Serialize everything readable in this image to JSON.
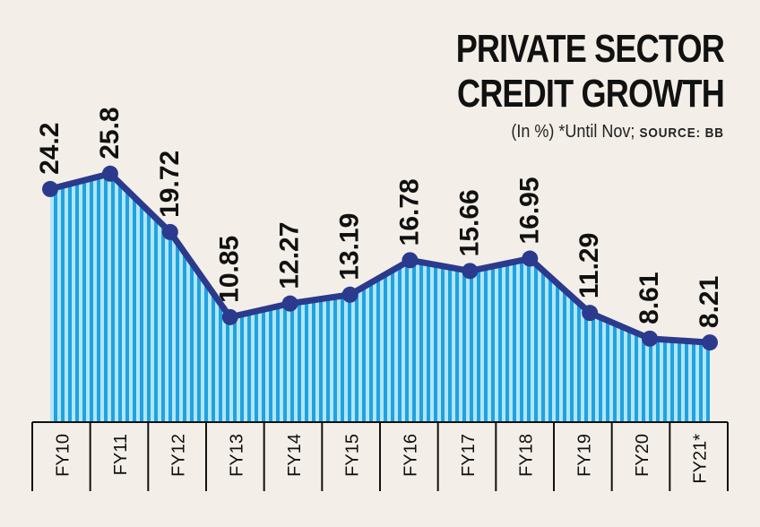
{
  "chart_data": {
    "type": "area",
    "title_line1": "PRIVATE SECTOR",
    "title_line2": "CREDIT GROWTH",
    "subtitle": "(In %) *Until Nov;",
    "source": "SOURCE: BB",
    "categories": [
      "FY10",
      "FY11",
      "FY12",
      "FY13",
      "FY14",
      "FY15",
      "FY16",
      "FY17",
      "FY18",
      "FY19",
      "FY20",
      "FY21*"
    ],
    "labels": [
      "24.2",
      "25.8",
      "19.72",
      "10.85",
      "12.27",
      "13.19",
      "16.78",
      "15.66",
      "16.95",
      "11.29",
      "8.61",
      "8.21"
    ],
    "values": [
      24.2,
      25.8,
      19.72,
      10.85,
      12.27,
      13.19,
      16.78,
      15.66,
      16.95,
      11.29,
      8.61,
      8.21
    ],
    "ylim": [
      0,
      34
    ],
    "colors": {
      "line": "#2b3a8c",
      "fill_light": "#b3e5fa",
      "fill_dark": "#1fa3e0",
      "text": "#111111",
      "axis": "#111111"
    }
  }
}
